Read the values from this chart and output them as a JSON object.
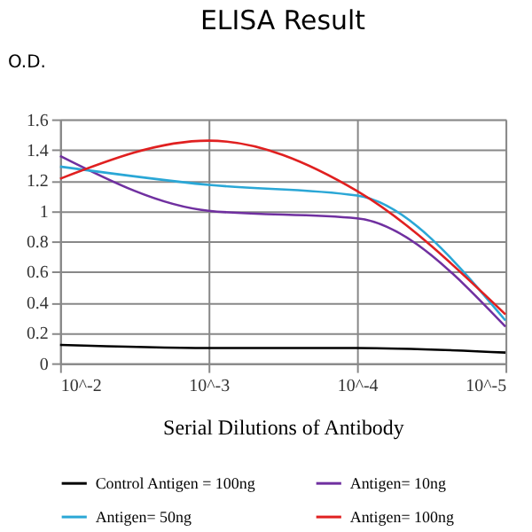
{
  "chart_data": {
    "type": "line",
    "title": "ELISA Result",
    "xlabel": "Serial Dilutions of Antibody",
    "ylabel": "O.D.",
    "x": [
      0.01,
      0.001,
      0.0001,
      1e-05
    ],
    "xlim": [
      0.01,
      1e-05
    ],
    "log": "x",
    "xticks": [
      {
        "value": 0.01,
        "label": "10^-2"
      },
      {
        "value": 0.001,
        "label": "10^-3"
      },
      {
        "value": 0.0001,
        "label": "10^-4"
      },
      {
        "value": 1e-05,
        "label": "10^-5"
      }
    ],
    "series": [
      {
        "name": "Control Antigen = 100ng",
        "color": "#000000",
        "values": [
          0.12,
          0.1,
          0.1,
          0.07
        ]
      },
      {
        "name": "Antigen= 10ng",
        "color": "#7030a0",
        "values": [
          1.36,
          1.0,
          0.95,
          0.24
        ]
      },
      {
        "name": "Antigen= 50ng",
        "color": "#2aa7d6",
        "values": [
          1.29,
          1.17,
          1.1,
          0.28
        ]
      },
      {
        "name": "Antigen= 100ng",
        "color": "#e02020",
        "values": [
          1.21,
          1.46,
          1.13,
          0.32
        ]
      }
    ],
    "ylim": [
      0,
      1.6
    ],
    "yticks": [
      0,
      0.2,
      0.4,
      0.6,
      0.8,
      1,
      1.2,
      1.4,
      1.6
    ],
    "grid": true,
    "legend": "bottom",
    "marker": "none",
    "line_style": "solid"
  }
}
